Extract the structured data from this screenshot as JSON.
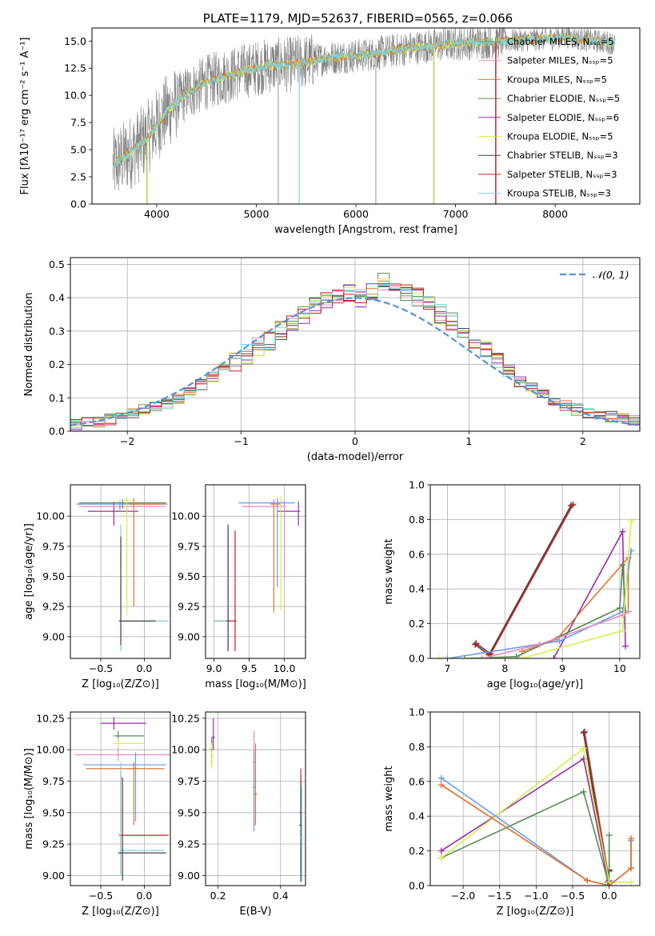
{
  "chart_data": [
    {
      "type": "line",
      "title": "PLATE=1179, MJD=52637, FIBERID=0565, z=0.066",
      "xlabel": "wavelength [Angstrom, rest frame]",
      "ylabel": "Flux [fλ10⁻¹⁷ erg cm⁻² s⁻¹ A⁻¹]",
      "xlim": [
        3350,
        8850
      ],
      "ylim": [
        0,
        16.2
      ],
      "xticks": [
        4000,
        5000,
        6000,
        7000,
        8000
      ],
      "yticks": [
        0.0,
        2.5,
        5.0,
        7.5,
        10.0,
        12.5,
        15.0
      ],
      "legend_position": "upper right",
      "series": [
        {
          "name": "Chabrier MILES, Nₛₛₚ=5",
          "color": "#6a9a64"
        },
        {
          "name": "Salpeter MILES, Nₛₛₚ=5",
          "color": "#e889c2"
        },
        {
          "name": "Kroupa MILES, Nₛₛₚ=5",
          "color": "#e0762e"
        },
        {
          "name": "Chabrier ELODIE, Nₛₛₚ=5",
          "color": "#5a8a58"
        },
        {
          "name": "Salpeter ELODIE, Nₛₛₚ=6",
          "color": "#9a2aa8"
        },
        {
          "name": "Kroupa ELODIE, Nₛₛₚ=5",
          "color": "#d6ee4a"
        },
        {
          "name": "Chabrier STELIB, Nₛₛₚ=3",
          "color": "#444444"
        },
        {
          "name": "Salpeter STELIB, Nₛₛₚ=3",
          "color": "#cc2020"
        },
        {
          "name": "Kroupa STELIB, Nₛₛₚ=3",
          "color": "#7fd0dc"
        }
      ],
      "data_color": "#808080",
      "model_curve": {
        "x": [
          3560,
          3700,
          3900,
          4100,
          4300,
          4500,
          4700,
          4900,
          5100,
          5300,
          5500,
          5700,
          5900,
          6100,
          6300,
          6500,
          6700,
          6900,
          7100,
          7300,
          7500,
          7700,
          7900,
          8100,
          8300,
          8500,
          8600
        ],
        "y": [
          3.5,
          4.5,
          6.0,
          8.5,
          10.2,
          11.2,
          11.8,
          12.3,
          12.7,
          12.8,
          13.1,
          13.4,
          13.6,
          13.7,
          14.0,
          14.3,
          14.5,
          14.7,
          14.8,
          14.9,
          15.0,
          15.1,
          15.2,
          15.4,
          15.1,
          14.9,
          14.8
        ]
      }
    },
    {
      "type": "line",
      "xlabel": "(data-model)/error",
      "ylabel": "Normed distribution",
      "xlim": [
        -2.5,
        2.5
      ],
      "ylim": [
        0,
        0.52
      ],
      "xticks": [
        -2,
        -1,
        0,
        1,
        2
      ],
      "yticks": [
        0.0,
        0.1,
        0.2,
        0.3,
        0.4,
        0.5
      ],
      "legend": "𝒩(0, 1)",
      "legend_position": "upper right",
      "bin_width": 0.1,
      "x_start": -2.5,
      "base_hist": [
        0.02,
        0.025,
        0.03,
        0.035,
        0.04,
        0.05,
        0.065,
        0.075,
        0.085,
        0.1,
        0.12,
        0.14,
        0.16,
        0.19,
        0.21,
        0.23,
        0.25,
        0.27,
        0.3,
        0.32,
        0.35,
        0.37,
        0.39,
        0.4,
        0.41,
        0.4,
        0.42,
        0.45,
        0.43,
        0.41,
        0.4,
        0.38,
        0.35,
        0.33,
        0.3,
        0.27,
        0.24,
        0.21,
        0.18,
        0.15,
        0.13,
        0.11,
        0.09,
        0.075,
        0.065,
        0.055,
        0.05,
        0.045,
        0.04,
        0.035
      ]
    },
    {
      "type": "scatter",
      "xlabel": "Z [log₁₀(Z/Z⊙)]",
      "ylabel": "age  [log₁₀(age/yr)]",
      "xlim": [
        -0.85,
        0.3
      ],
      "ylim": [
        8.82,
        10.26
      ],
      "xticks": [
        -0.5,
        0.0
      ],
      "yticks": [
        9.0,
        9.25,
        9.5,
        9.75,
        10.0
      ],
      "crosses": [
        {
          "x": -0.35,
          "y": 10.04,
          "xerr": [
            0.3,
            0.28
          ],
          "yerr": [
            0.12,
            0.08
          ],
          "color": "#9a2aa8"
        },
        {
          "x": -0.2,
          "y": 10.08,
          "xerr": [
            0.55,
            0.45
          ],
          "yerr": [
            0.05,
            0.05
          ],
          "color": "#e889c2"
        },
        {
          "x": -0.25,
          "y": 10.11,
          "xerr": [
            0.5,
            0.5
          ],
          "yerr": [
            0.05,
            0.03
          ],
          "color": "#5a8a58"
        },
        {
          "x": -0.28,
          "y": 10.1,
          "xerr": [
            0.5,
            0.55
          ],
          "yerr": [
            0.05,
            0.03
          ],
          "color": "#6a9aea"
        },
        {
          "x": -0.12,
          "y": 10.1,
          "xerr": [
            0.05,
            0.35
          ],
          "yerr": [
            0.85,
            0.05
          ],
          "color": "#e0762e"
        },
        {
          "x": -0.2,
          "y": 10.13,
          "xerr": [
            0.05,
            0.05
          ],
          "yerr": [
            0.95,
            0.03
          ],
          "color": "#d6ee4a"
        },
        {
          "x": -0.27,
          "y": 9.13,
          "xerr": [
            0.02,
            0.55
          ],
          "yerr": [
            0.25,
            0.8
          ],
          "color": "#7fd0dc"
        },
        {
          "x": -0.27,
          "y": 9.13,
          "xerr": [
            0.02,
            0.4
          ],
          "yerr": [
            0.2,
            0.7
          ],
          "color": "#444444"
        }
      ]
    },
    {
      "type": "scatter",
      "xlabel": "mass [log₁₀(M/M⊙)]",
      "xlim": [
        8.88,
        10.3
      ],
      "ylim": [
        8.82,
        10.26
      ],
      "xticks": [
        9.0,
        9.5,
        10.0
      ],
      "yticks": [
        9.0,
        9.25,
        9.5,
        9.75,
        10.0
      ],
      "crosses": [
        {
          "x": 10.2,
          "y": 10.04,
          "xerr": [
            0.3,
            0.02
          ],
          "yerr": [
            0.12,
            0.08
          ],
          "color": "#9a2aa8"
        },
        {
          "x": 10.0,
          "y": 10.08,
          "xerr": [
            0.6,
            0.02
          ],
          "yerr": [
            0.6,
            0.05
          ],
          "color": "#e889c2"
        },
        {
          "x": 9.9,
          "y": 10.11,
          "xerr": [
            0.55,
            0.25
          ],
          "yerr": [
            0.7,
            0.04
          ],
          "color": "#6a9aea"
        },
        {
          "x": 9.85,
          "y": 10.1,
          "xerr": [
            0.05,
            0.1
          ],
          "yerr": [
            0.9,
            0.04
          ],
          "color": "#e0762e"
        },
        {
          "x": 9.95,
          "y": 10.12,
          "xerr": [
            0.05,
            0.05
          ],
          "yerr": [
            0.9,
            0.05
          ],
          "color": "#d6ee4a"
        },
        {
          "x": 9.3,
          "y": 9.13,
          "xerr": [
            0.3,
            0.02
          ],
          "yerr": [
            0.25,
            0.75
          ],
          "color": "#cc2020"
        },
        {
          "x": 9.2,
          "y": 9.13,
          "xerr": [
            0.2,
            0.02
          ],
          "yerr": [
            0.25,
            0.8
          ],
          "color": "#7fd0dc"
        },
        {
          "x": 9.2,
          "y": 9.13,
          "xerr": [
            0.02,
            0.02
          ],
          "yerr": [
            0.25,
            0.8
          ],
          "color": "#444444"
        }
      ]
    },
    {
      "type": "line",
      "xlabel": "age  [log₁₀(age/yr)]",
      "ylabel": "mass weight",
      "xlim": [
        6.7,
        10.35
      ],
      "ylim": [
        0,
        1.0
      ],
      "xticks": [
        7,
        8,
        9,
        10
      ],
      "yticks": [
        0.0,
        0.2,
        0.4,
        0.6,
        0.8,
        1.0
      ],
      "series": [
        {
          "name": "",
          "color": "#7fd0dc",
          "x": [
            7.5,
            7.75,
            9.2
          ],
          "y": [
            0.09,
            0.03,
            0.89
          ]
        },
        {
          "name": "",
          "color": "#444444",
          "x": [
            7.48,
            7.72,
            9.15
          ],
          "y": [
            0.08,
            0.02,
            0.88
          ]
        },
        {
          "name": "",
          "color": "#cc2020",
          "x": [
            7.5,
            7.75,
            9.18
          ],
          "y": [
            0.085,
            0.025,
            0.885
          ]
        },
        {
          "name": "",
          "color": "#9a2aa8",
          "x": [
            8.85,
            10.05,
            10.1
          ],
          "y": [
            0.0,
            0.73,
            0.07
          ]
        },
        {
          "name": "",
          "color": "#e0762e",
          "x": [
            8.3,
            8.9,
            10.15,
            10.15
          ],
          "y": [
            0.04,
            0.11,
            0.58,
            0.27
          ]
        },
        {
          "name": "",
          "color": "#6a9aea",
          "x": [
            7.0,
            8.95,
            10.05,
            10.2
          ],
          "y": [
            0.0,
            0.1,
            0.27,
            0.62
          ]
        },
        {
          "name": "",
          "color": "#5a8a58",
          "x": [
            7.3,
            8.2,
            10.0,
            10.05,
            10.1
          ],
          "y": [
            0.0,
            0.01,
            0.29,
            0.54,
            0.27
          ]
        },
        {
          "name": "",
          "color": "#e889c2",
          "x": [
            7.6,
            8.6,
            10.05,
            10.15
          ],
          "y": [
            0.0,
            0.08,
            0.25,
            0.27
          ]
        },
        {
          "name": "",
          "color": "#d6ee4a",
          "x": [
            6.85,
            8.3,
            10.05,
            10.2
          ],
          "y": [
            0.0,
            0.0,
            0.16,
            0.79
          ]
        }
      ]
    },
    {
      "type": "scatter",
      "xlabel": "Z [log₁₀(Z/Z⊙)]",
      "ylabel": "mass [log₁₀(M/M⊙)]",
      "xlim": [
        -0.85,
        0.3
      ],
      "ylim": [
        8.92,
        10.3
      ],
      "xticks": [
        -0.5,
        0.0
      ],
      "yticks": [
        9.0,
        9.25,
        9.5,
        9.75,
        10.0,
        10.25
      ],
      "crosses": [
        {
          "x": -0.35,
          "y": 10.21,
          "xerr": [
            0.15,
            0.37
          ],
          "yerr": [
            0.05,
            0.05
          ],
          "color": "#9a2aa8"
        },
        {
          "x": -0.3,
          "y": 10.11,
          "xerr": [
            0.05,
            0.3
          ],
          "yerr": [
            0.05,
            0.04
          ],
          "color": "#5a8a58"
        },
        {
          "x": -0.3,
          "y": 10.05,
          "xerr": [
            0.05,
            0.3
          ],
          "yerr": [
            0.05,
            0.04
          ],
          "color": "#d6ee4a"
        },
        {
          "x": -0.3,
          "y": 9.96,
          "xerr": [
            0.5,
            0.6
          ],
          "yerr": [
            0.05,
            0.05
          ],
          "color": "#e889c2"
        },
        {
          "x": -0.1,
          "y": 9.88,
          "xerr": [
            0.6,
            0.35
          ],
          "yerr": [
            0.45,
            0.1
          ],
          "color": "#6a9aea"
        },
        {
          "x": -0.12,
          "y": 9.85,
          "xerr": [
            0.55,
            0.35
          ],
          "yerr": [
            0.45,
            0.05
          ],
          "color": "#e0762e"
        },
        {
          "x": -0.27,
          "y": 9.32,
          "xerr": [
            0.02,
            0.55
          ],
          "yerr": [
            0.3,
            0.5
          ],
          "color": "#cc2020"
        },
        {
          "x": -0.27,
          "y": 9.2,
          "xerr": [
            0.02,
            0.5
          ],
          "yerr": [
            0.2,
            0.7
          ],
          "color": "#7fd0dc"
        },
        {
          "x": -0.25,
          "y": 9.18,
          "xerr": [
            0.05,
            0.5
          ],
          "yerr": [
            0.22,
            0.6
          ],
          "color": "#444444"
        }
      ]
    },
    {
      "type": "scatter",
      "xlabel": "E(B-V)",
      "xlim": [
        0.16,
        0.48
      ],
      "ylim": [
        8.92,
        10.3
      ],
      "xticks": [
        0.2,
        0.4
      ],
      "yticks": [
        9.0,
        9.25,
        9.5,
        9.75,
        10.0,
        10.25
      ],
      "crosses": [
        {
          "x": 0.185,
          "y": 10.1,
          "xerr": [
            0.005,
            0.005
          ],
          "yerr": [
            0.1,
            0.15
          ],
          "color": "#9a2aa8"
        },
        {
          "x": 0.18,
          "y": 10.0,
          "xerr": [
            0.005,
            0.005
          ],
          "yerr": [
            0.1,
            0.1
          ],
          "color": "#5a8a58"
        },
        {
          "x": 0.18,
          "y": 9.95,
          "xerr": [
            0.005,
            0.005
          ],
          "yerr": [
            0.1,
            0.1
          ],
          "color": "#d6ee4a"
        },
        {
          "x": 0.315,
          "y": 9.9,
          "xerr": [
            0.005,
            0.005
          ],
          "yerr": [
            0.5,
            0.25
          ],
          "color": "#e889c2"
        },
        {
          "x": 0.315,
          "y": 9.7,
          "xerr": [
            0.005,
            0.005
          ],
          "yerr": [
            0.35,
            0.3
          ],
          "color": "#6a9aea"
        },
        {
          "x": 0.32,
          "y": 9.65,
          "xerr": [
            0.005,
            0.005
          ],
          "yerr": [
            0.25,
            0.4
          ],
          "color": "#e0762e"
        },
        {
          "x": 0.465,
          "y": 9.5,
          "xerr": [
            0.005,
            0.005
          ],
          "yerr": [
            0.5,
            0.35
          ],
          "color": "#cc2020"
        },
        {
          "x": 0.465,
          "y": 9.4,
          "xerr": [
            0.005,
            0.005
          ],
          "yerr": [
            0.45,
            0.35
          ],
          "color": "#444444"
        },
        {
          "x": 0.468,
          "y": 9.3,
          "xerr": [
            0.005,
            0.005
          ],
          "yerr": [
            0.35,
            0.4
          ],
          "color": "#7fd0dc"
        }
      ]
    },
    {
      "type": "line",
      "xlabel": "Z [log₁₀(Z/Z⊙)]",
      "ylabel": "mass weight",
      "xlim": [
        -2.45,
        0.42
      ],
      "ylim": [
        0,
        1.0
      ],
      "xticks": [
        -2.0,
        -1.5,
        -1.0,
        -0.5,
        0.0
      ],
      "yticks": [
        0.0,
        0.2,
        0.4,
        0.6,
        0.8,
        1.0
      ],
      "series": [
        {
          "name": "",
          "color": "#7fd0dc",
          "x": [
            -0.33,
            0.0,
            0.0
          ],
          "y": [
            0.89,
            0.03,
            0.08
          ]
        },
        {
          "name": "",
          "color": "#444444",
          "x": [
            -0.35,
            -0.02,
            0.0
          ],
          "y": [
            0.88,
            0.02,
            0.09
          ]
        },
        {
          "name": "",
          "color": "#cc2020",
          "x": [
            -0.34,
            0.0,
            0.0
          ],
          "y": [
            0.885,
            0.025,
            0.085
          ]
        },
        {
          "name": "",
          "color": "#9a2aa8",
          "x": [
            -2.3,
            -0.35,
            0.0
          ],
          "y": [
            0.2,
            0.73,
            0.0
          ]
        },
        {
          "name": "",
          "color": "#5a8a58",
          "x": [
            -2.3,
            -0.35,
            0.0,
            0.0
          ],
          "y": [
            0.16,
            0.54,
            0.0,
            0.29
          ]
        },
        {
          "name": "",
          "color": "#d6ee4a",
          "x": [
            -2.3,
            -0.35,
            0.0,
            0.3
          ],
          "y": [
            0.16,
            0.79,
            0.02,
            0.02
          ]
        },
        {
          "name": "",
          "color": "#e889c2",
          "x": [
            -2.3,
            -0.3,
            0.0,
            0.3,
            0.3
          ],
          "y": [
            0.58,
            0.03,
            0.0,
            0.1,
            0.27
          ]
        },
        {
          "name": "",
          "color": "#6a9aea",
          "x": [
            -2.3,
            -0.3,
            0.0,
            0.3,
            0.3
          ],
          "y": [
            0.62,
            0.03,
            0.0,
            0.1,
            0.26
          ]
        },
        {
          "name": "",
          "color": "#e0762e",
          "x": [
            -2.3,
            -0.3,
            0.0,
            0.3,
            0.3
          ],
          "y": [
            0.58,
            0.03,
            0.0,
            0.1,
            0.27
          ]
        }
      ]
    }
  ]
}
